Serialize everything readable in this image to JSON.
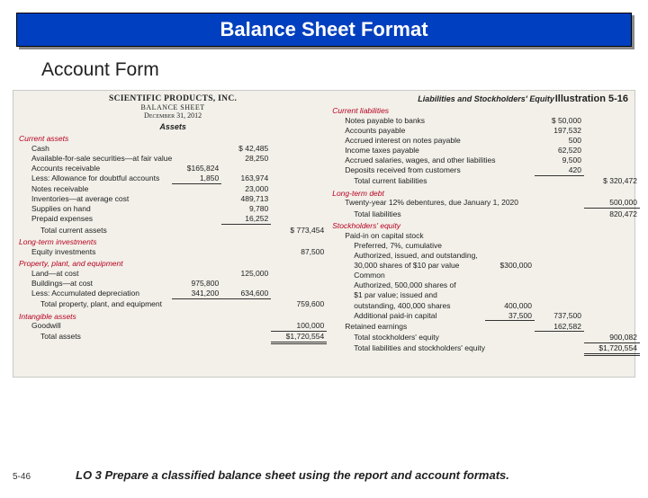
{
  "title": "Balance Sheet Format",
  "subtitle": "Account Form",
  "illustration": "Illustration 5-16",
  "footer_page": "5-46",
  "footer_lo": "LO 3  Prepare a classified balance sheet using the report and account formats.",
  "company": {
    "name": "SCIENTIFIC PRODUCTS, INC.",
    "doc": "BALANCE SHEET",
    "date": "December 31, 2012"
  },
  "assets_header": "Assets",
  "liab_header": "Liabilities and Stockholders' Equity",
  "sections": {
    "ca": "Current assets",
    "lti": "Long-term investments",
    "ppe": "Property, plant, and equipment",
    "intan": "Intangible assets",
    "cl": "Current liabilities",
    "ltd": "Long-term debt",
    "se": "Stockholders' equity"
  },
  "left": {
    "cash_l": "Cash",
    "cash_v": "$  42,485",
    "afs_l": "Available-for-sale securities—at fair value",
    "afs_v": "28,250",
    "ar_l": "Accounts receivable",
    "ar_v": "$165,824",
    "allow_l": "Less: Allowance for doubtful accounts",
    "allow_v": "1,850",
    "ar_net": "163,974",
    "notes_l": "Notes receivable",
    "notes_v": "23,000",
    "inv_l": "Inventories—at average cost",
    "inv_v": "489,713",
    "supp_l": "Supplies on hand",
    "supp_v": "9,780",
    "prep_l": "Prepaid expenses",
    "prep_v": "16,252",
    "tca_l": "Total current assets",
    "tca_v": "$  773,454",
    "eqinv_l": "Equity investments",
    "eqinv_v": "87,500",
    "land_l": "Land—at cost",
    "land_v": "125,000",
    "bldg_l": "Buildings—at cost",
    "bldg_v": "975,800",
    "dep_l": "Less: Accumulated depreciation",
    "dep_v": "341,200",
    "bldg_net": "634,600",
    "tppe_l": "Total property, plant, and equipment",
    "tppe_v": "759,600",
    "gw_l": "Goodwill",
    "gw_v": "100,000",
    "ta_l": "Total assets",
    "ta_v": "$1,720,554"
  },
  "right": {
    "np_l": "Notes payable to banks",
    "np_v": "$  50,000",
    "ap_l": "Accounts payable",
    "ap_v": "197,532",
    "int_l": "Accrued interest on notes payable",
    "int_v": "500",
    "tax_l": "Income taxes payable",
    "tax_v": "62,520",
    "accr_l": "Accrued salaries, wages, and other liabilities",
    "accr_v": "9,500",
    "depo_l": "Deposits received from customers",
    "depo_v": "420",
    "tcl_l": "Total current liabilities",
    "tcl_v": "$   320,472",
    "deb_l": "Twenty-year 12% debentures, due January 1, 2020",
    "deb_v": "500,000",
    "tl_l": "Total liabilities",
    "tl_v": "820,472",
    "pc_l": "Paid-in on capital stock",
    "pref1": "Preferred, 7%, cumulative",
    "pref2": "Authorized, issued, and outstanding,",
    "pref3": "30,000 shares of $10 par value",
    "pref_v": "$300,000",
    "com1": "Common",
    "com2": "Authorized, 500,000 shares of",
    "com3": "$1 par value; issued and",
    "com4": "outstanding, 400,000 shares",
    "com_v": "400,000",
    "apic_l": "Additional paid-in capital",
    "apic_v": "37,500",
    "pic_total": "737,500",
    "re_l": "Retained earnings",
    "re_v": "162,582",
    "tse_l": "Total stockholders' equity",
    "tse_v": "900,082",
    "tlse_l": "Total liabilities and stockholders' equity",
    "tlse_v": "$1,720,554"
  }
}
